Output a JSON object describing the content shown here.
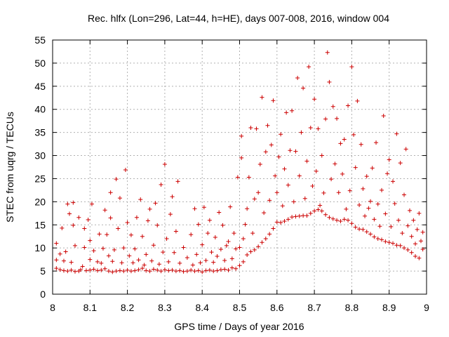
{
  "chart_data": {
    "type": "scatter",
    "title": "Rec. hlfx (Lon=296, Lat=44, h=HE), days 007-008, 2016, window 004",
    "xlabel": "GPS time / Days of year 2016",
    "ylabel": "STEC from uqrg / TECUs",
    "xlim": [
      8,
      9
    ],
    "ylim": [
      0,
      55
    ],
    "xticks": [
      8,
      8.1,
      8.2,
      8.3,
      8.4,
      8.5,
      8.6,
      8.7,
      8.8,
      8.9,
      9
    ],
    "xtick_labels": [
      "8",
      "8.1",
      "8.2",
      "8.3",
      "8.4",
      "8.5",
      "8.6",
      "8.7",
      "8.8",
      "8.9",
      "9"
    ],
    "yticks": [
      0,
      5,
      10,
      15,
      20,
      25,
      30,
      35,
      40,
      45,
      50,
      55
    ],
    "ytick_labels": [
      "0",
      "5",
      "10",
      "15",
      "20",
      "25",
      "30",
      "35",
      "40",
      "45",
      "50",
      "55"
    ],
    "grid": true,
    "marker": "+",
    "color": "#cc0000",
    "series": [
      {
        "name": "STEC",
        "points": [
          [
            8.01,
            5.6
          ],
          [
            8.01,
            7.4
          ],
          [
            8.01,
            11.0
          ],
          [
            8.02,
            5.3
          ],
          [
            8.02,
            8.7
          ],
          [
            8.025,
            14.3
          ],
          [
            8.03,
            5.1
          ],
          [
            8.03,
            7.2
          ],
          [
            8.035,
            9.2
          ],
          [
            8.04,
            5.0
          ],
          [
            8.04,
            19.5
          ],
          [
            8.045,
            17.4
          ],
          [
            8.05,
            5.2
          ],
          [
            8.05,
            6.9
          ],
          [
            8.055,
            14.9
          ],
          [
            8.055,
            19.8
          ],
          [
            8.06,
            4.9
          ],
          [
            8.06,
            10.5
          ],
          [
            8.07,
            5.0
          ],
          [
            8.07,
            16.6
          ],
          [
            8.075,
            5.3
          ],
          [
            8.08,
            6.0
          ],
          [
            8.085,
            14.2
          ],
          [
            8.085,
            10.1
          ],
          [
            8.09,
            5.1
          ],
          [
            8.095,
            16.1
          ],
          [
            8.1,
            5.2
          ],
          [
            8.1,
            7.5
          ],
          [
            8.1,
            11.6
          ],
          [
            8.105,
            19.5
          ],
          [
            8.11,
            5.4
          ],
          [
            8.11,
            9.4
          ],
          [
            8.12,
            5.1
          ],
          [
            8.12,
            7.0
          ],
          [
            8.125,
            13.0
          ],
          [
            8.13,
            5.2
          ],
          [
            8.13,
            6.7
          ],
          [
            8.135,
            9.9
          ],
          [
            8.14,
            5.5
          ],
          [
            8.14,
            18.2
          ],
          [
            8.145,
            12.9
          ],
          [
            8.15,
            5.0
          ],
          [
            8.15,
            8.3
          ],
          [
            8.155,
            22.0
          ],
          [
            8.155,
            16.5
          ],
          [
            8.16,
            4.8
          ],
          [
            8.16,
            7.1
          ],
          [
            8.165,
            9.6
          ],
          [
            8.17,
            5.0
          ],
          [
            8.17,
            24.9
          ],
          [
            8.175,
            14.2
          ],
          [
            8.18,
            5.1
          ],
          [
            8.18,
            20.8
          ],
          [
            8.185,
            6.8
          ],
          [
            8.19,
            5.0
          ],
          [
            8.19,
            10.0
          ],
          [
            8.195,
            26.9
          ],
          [
            8.2,
            5.2
          ],
          [
            8.2,
            15.5
          ],
          [
            8.205,
            8.3
          ],
          [
            8.21,
            5.0
          ],
          [
            8.21,
            12.8
          ],
          [
            8.215,
            6.8
          ],
          [
            8.22,
            5.1
          ],
          [
            8.22,
            9.8
          ],
          [
            8.225,
            16.6
          ],
          [
            8.23,
            5.3
          ],
          [
            8.23,
            7.4
          ],
          [
            8.235,
            20.5
          ],
          [
            8.24,
            5.6
          ],
          [
            8.24,
            12.5
          ],
          [
            8.245,
            6.3
          ],
          [
            8.25,
            5.1
          ],
          [
            8.25,
            8.6
          ],
          [
            8.255,
            15.9
          ],
          [
            8.26,
            5.0
          ],
          [
            8.26,
            18.4
          ],
          [
            8.265,
            7.2
          ],
          [
            8.27,
            5.4
          ],
          [
            8.27,
            10.6
          ],
          [
            8.275,
            19.7
          ],
          [
            8.28,
            5.2
          ],
          [
            8.28,
            14.9
          ],
          [
            8.285,
            6.5
          ],
          [
            8.29,
            5.0
          ],
          [
            8.29,
            23.7
          ],
          [
            8.295,
            9.1
          ],
          [
            8.3,
            5.3
          ],
          [
            8.3,
            28.1
          ],
          [
            8.305,
            12.0
          ],
          [
            8.31,
            5.1
          ],
          [
            8.31,
            7.0
          ],
          [
            8.315,
            17.3
          ],
          [
            8.32,
            5.2
          ],
          [
            8.32,
            21.1
          ],
          [
            8.325,
            9.0
          ],
          [
            8.33,
            5.0
          ],
          [
            8.33,
            13.6
          ],
          [
            8.335,
            24.4
          ],
          [
            8.34,
            5.1
          ],
          [
            8.34,
            6.7
          ],
          [
            8.35,
            4.9
          ],
          [
            8.35,
            10.1
          ],
          [
            8.36,
            5.0
          ],
          [
            8.36,
            7.9
          ],
          [
            8.37,
            5.2
          ],
          [
            8.37,
            12.9
          ],
          [
            8.375,
            6.3
          ],
          [
            8.38,
            5.0
          ],
          [
            8.38,
            18.5
          ],
          [
            8.385,
            8.6
          ],
          [
            8.39,
            5.1
          ],
          [
            8.39,
            15.1
          ],
          [
            8.395,
            6.8
          ],
          [
            8.4,
            4.8
          ],
          [
            8.4,
            10.7
          ],
          [
            8.405,
            18.8
          ],
          [
            8.41,
            5.1
          ],
          [
            8.41,
            7.3
          ],
          [
            8.415,
            13.2
          ],
          [
            8.42,
            5.2
          ],
          [
            8.42,
            16.0
          ],
          [
            8.425,
            9.1
          ],
          [
            8.43,
            5.0
          ],
          [
            8.43,
            6.9
          ],
          [
            8.435,
            12.3
          ],
          [
            8.44,
            5.1
          ],
          [
            8.44,
            8.2
          ],
          [
            8.445,
            17.7
          ],
          [
            8.45,
            5.3
          ],
          [
            8.45,
            9.7
          ],
          [
            8.455,
            14.9
          ],
          [
            8.46,
            5.4
          ],
          [
            8.46,
            7.3
          ],
          [
            8.465,
            10.5
          ],
          [
            8.47,
            5.2
          ],
          [
            8.47,
            11.4
          ],
          [
            8.475,
            18.9
          ],
          [
            8.48,
            5.7
          ],
          [
            8.48,
            7.7
          ],
          [
            8.485,
            13.2
          ],
          [
            8.49,
            5.5
          ],
          [
            8.49,
            9.8
          ],
          [
            8.495,
            25.3
          ],
          [
            8.5,
            6.2
          ],
          [
            8.5,
            10.1
          ],
          [
            8.505,
            29.5
          ],
          [
            8.505,
            34.2
          ],
          [
            8.51,
            7.0
          ],
          [
            8.51,
            12.0
          ],
          [
            8.515,
            15.1
          ],
          [
            8.52,
            8.5
          ],
          [
            8.52,
            18.5
          ],
          [
            8.525,
            25.3
          ],
          [
            8.53,
            9.2
          ],
          [
            8.53,
            36.0
          ],
          [
            8.535,
            13.2
          ],
          [
            8.54,
            9.6
          ],
          [
            8.54,
            20.6
          ],
          [
            8.545,
            35.8
          ],
          [
            8.55,
            10.3
          ],
          [
            8.55,
            22.0
          ],
          [
            8.555,
            28.1
          ],
          [
            8.56,
            11.2
          ],
          [
            8.56,
            42.6
          ],
          [
            8.565,
            17.6
          ],
          [
            8.57,
            12.0
          ],
          [
            8.57,
            30.8
          ],
          [
            8.575,
            36.5
          ],
          [
            8.58,
            13.0
          ],
          [
            8.58,
            20.3
          ],
          [
            8.585,
            32.3
          ],
          [
            8.59,
            14.2
          ],
          [
            8.59,
            41.9
          ],
          [
            8.595,
            25.6
          ],
          [
            8.6,
            15.6
          ],
          [
            8.6,
            22.0
          ],
          [
            8.605,
            29.7
          ],
          [
            8.61,
            15.5
          ],
          [
            8.61,
            34.6
          ],
          [
            8.615,
            19.1
          ],
          [
            8.62,
            15.8
          ],
          [
            8.62,
            27.1
          ],
          [
            8.625,
            39.3
          ],
          [
            8.63,
            16.2
          ],
          [
            8.63,
            23.6
          ],
          [
            8.635,
            31.1
          ],
          [
            8.64,
            16.7
          ],
          [
            8.64,
            39.7
          ],
          [
            8.645,
            20.0
          ],
          [
            8.65,
            16.8
          ],
          [
            8.65,
            30.9
          ],
          [
            8.655,
            46.8
          ],
          [
            8.66,
            16.9
          ],
          [
            8.66,
            25.6
          ],
          [
            8.665,
            35.0
          ],
          [
            8.67,
            17.0
          ],
          [
            8.67,
            44.6
          ],
          [
            8.675,
            20.7
          ],
          [
            8.68,
            17.0
          ],
          [
            8.68,
            28.8
          ],
          [
            8.685,
            49.2
          ],
          [
            8.69,
            17.5
          ],
          [
            8.69,
            36.0
          ],
          [
            8.695,
            23.4
          ],
          [
            8.7,
            18.0
          ],
          [
            8.7,
            42.2
          ],
          [
            8.705,
            26.6
          ],
          [
            8.71,
            18.3
          ],
          [
            8.71,
            35.8
          ],
          [
            8.715,
            19.2
          ],
          [
            8.72,
            18.0
          ],
          [
            8.72,
            30.0
          ],
          [
            8.725,
            21.9
          ],
          [
            8.73,
            17.2
          ],
          [
            8.73,
            37.9
          ],
          [
            8.735,
            52.3
          ],
          [
            8.74,
            16.6
          ],
          [
            8.74,
            45.9
          ],
          [
            8.745,
            24.9
          ],
          [
            8.75,
            16.3
          ],
          [
            8.75,
            40.6
          ],
          [
            8.755,
            28.2
          ],
          [
            8.76,
            16.0
          ],
          [
            8.76,
            38.0
          ],
          [
            8.765,
            22.0
          ],
          [
            8.77,
            15.8
          ],
          [
            8.77,
            32.6
          ],
          [
            8.775,
            26.0
          ],
          [
            8.78,
            16.2
          ],
          [
            8.78,
            33.5
          ],
          [
            8.785,
            18.4
          ],
          [
            8.79,
            16.0
          ],
          [
            8.79,
            40.8
          ],
          [
            8.795,
            22.4
          ],
          [
            8.8,
            15.3
          ],
          [
            8.8,
            49.2
          ],
          [
            8.805,
            34.5
          ],
          [
            8.81,
            14.5
          ],
          [
            8.81,
            27.4
          ],
          [
            8.815,
            41.8
          ],
          [
            8.82,
            14.1
          ],
          [
            8.82,
            19.3
          ],
          [
            8.825,
            32.4
          ],
          [
            8.83,
            14.0
          ],
          [
            8.83,
            22.8
          ],
          [
            8.835,
            16.9
          ],
          [
            8.84,
            13.5
          ],
          [
            8.84,
            25.5
          ],
          [
            8.845,
            18.6
          ],
          [
            8.85,
            13.0
          ],
          [
            8.85,
            20.1
          ],
          [
            8.855,
            27.3
          ],
          [
            8.86,
            12.4
          ],
          [
            8.86,
            16.2
          ],
          [
            8.865,
            32.8
          ],
          [
            8.87,
            12.0
          ],
          [
            8.87,
            19.5
          ],
          [
            8.875,
            14.7
          ],
          [
            8.88,
            11.8
          ],
          [
            8.88,
            22.5
          ],
          [
            8.885,
            38.6
          ],
          [
            8.89,
            11.4
          ],
          [
            8.89,
            17.4
          ],
          [
            8.895,
            26.1
          ],
          [
            8.9,
            11.2
          ],
          [
            8.9,
            29.1
          ],
          [
            8.905,
            14.6
          ],
          [
            8.91,
            11.0
          ],
          [
            8.91,
            24.4
          ],
          [
            8.915,
            19.6
          ],
          [
            8.92,
            10.6
          ],
          [
            8.92,
            34.7
          ],
          [
            8.925,
            16.0
          ],
          [
            8.93,
            10.5
          ],
          [
            8.93,
            28.4
          ],
          [
            8.935,
            13.2
          ],
          [
            8.94,
            10.0
          ],
          [
            8.94,
            21.5
          ],
          [
            8.945,
            31.4
          ],
          [
            8.95,
            9.6
          ],
          [
            8.95,
            14.8
          ],
          [
            8.955,
            18.1
          ],
          [
            8.96,
            9.0
          ],
          [
            8.96,
            12.5
          ],
          [
            8.965,
            16.0
          ],
          [
            8.97,
            8.2
          ],
          [
            8.97,
            10.9
          ],
          [
            8.975,
            14.0
          ],
          [
            8.98,
            7.8
          ],
          [
            8.98,
            17.5
          ],
          [
            8.985,
            11.5
          ],
          [
            8.99,
            9.7
          ],
          [
            8.99,
            13.4
          ]
        ]
      }
    ]
  }
}
